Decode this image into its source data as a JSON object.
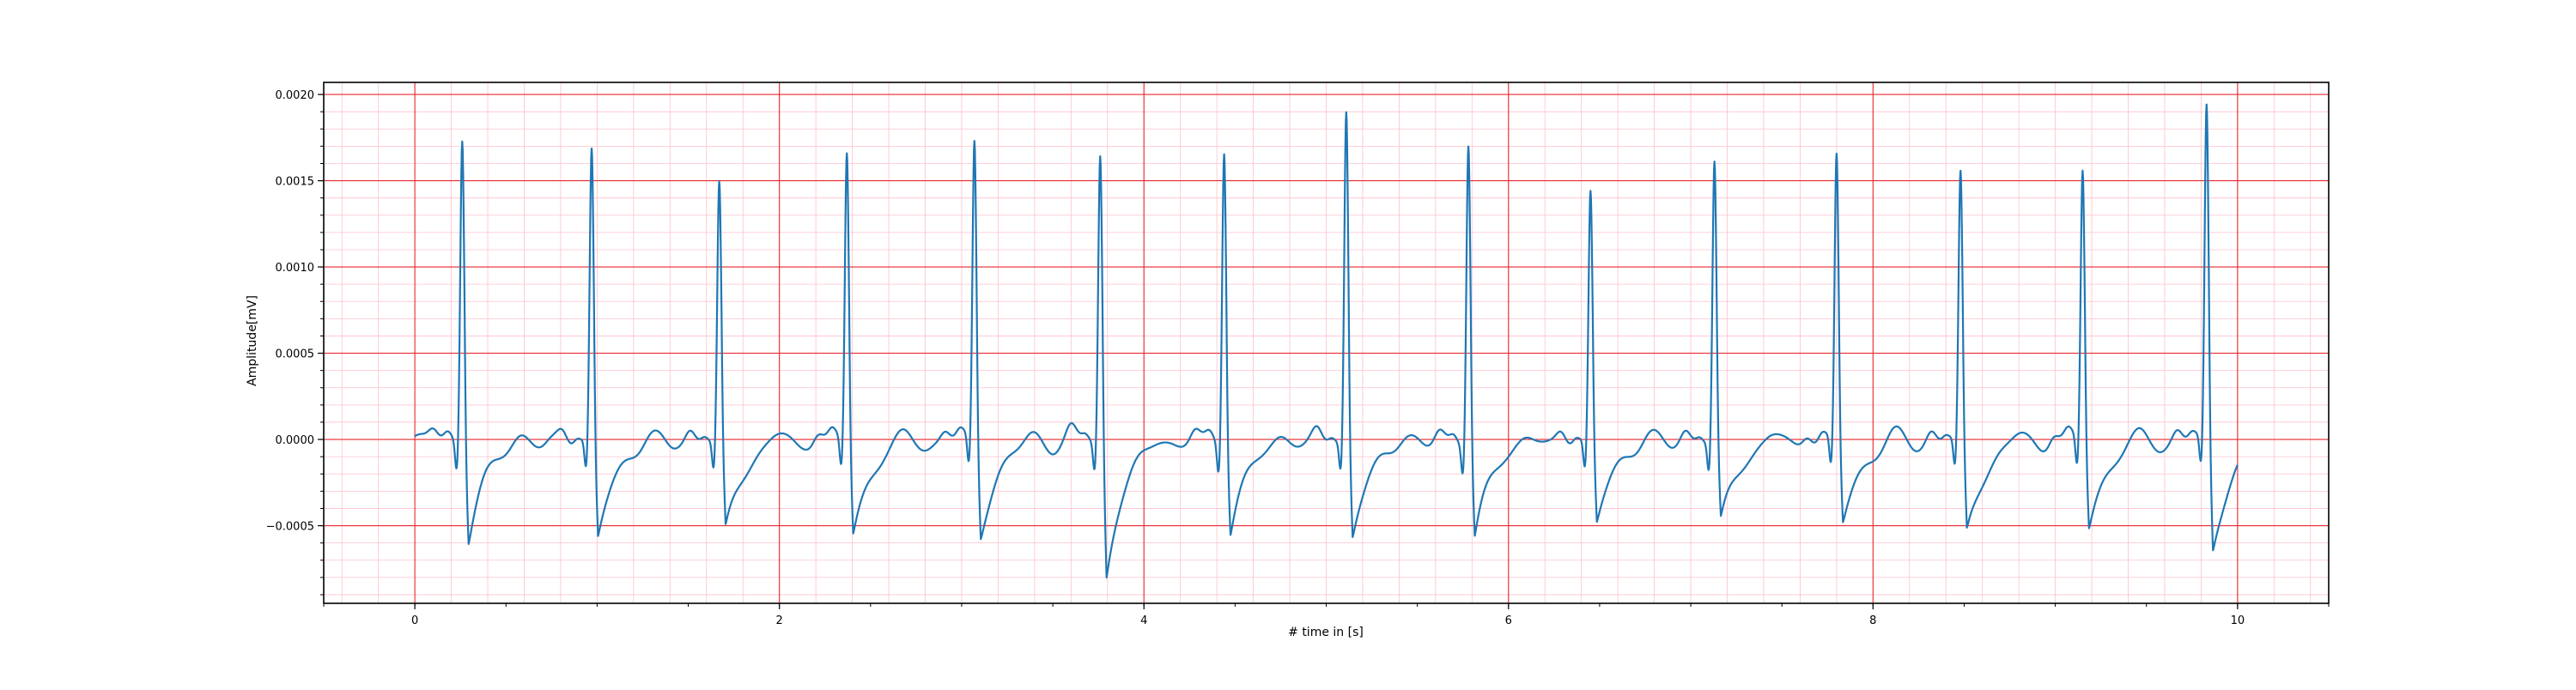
{
  "chart_data": {
    "type": "line",
    "title": "",
    "xlabel": "# time in [s]",
    "ylabel": "Amplitude[mV]",
    "xlim": [
      -0.5,
      10.5
    ],
    "ylim": [
      -0.00095,
      0.00207
    ],
    "x_ticks": [
      0,
      2,
      4,
      6,
      8,
      10
    ],
    "x_tick_labels": [
      "0",
      "2",
      "4",
      "6",
      "8",
      "10"
    ],
    "y_ticks": [
      -0.0005,
      0.0,
      0.0005,
      0.001,
      0.0015,
      0.002
    ],
    "y_tick_labels": [
      "−0.0005",
      "0.0000",
      "0.0005",
      "0.0010",
      "0.0015",
      "0.0020"
    ],
    "grid": {
      "major": true,
      "major_color": "#e8282e",
      "minor": true,
      "minor_color": "#ffc0cb",
      "x_minor_step": 0.2,
      "y_minor_step": 0.0001
    },
    "legend": false,
    "series": [
      {
        "color": "#1f77b4",
        "sample_rate_hz": 100,
        "duration_s": 10.0,
        "baseline_mV": 0.0,
        "beats": [
          {
            "r_time_s": 0.26,
            "r_peak_mV": 0.00176,
            "s_min_mV": -0.00058
          },
          {
            "r_time_s": 0.97,
            "r_peak_mV": 0.00167,
            "s_min_mV": -0.00058
          },
          {
            "r_time_s": 1.67,
            "r_peak_mV": 0.00147,
            "s_min_mV": -0.00054
          },
          {
            "r_time_s": 2.37,
            "r_peak_mV": 0.00166,
            "s_min_mV": -0.00055
          },
          {
            "r_time_s": 3.07,
            "r_peak_mV": 0.00173,
            "s_min_mV": -0.00055
          },
          {
            "r_time_s": 3.76,
            "r_peak_mV": 0.00165,
            "s_min_mV": -0.0008
          },
          {
            "r_time_s": 4.44,
            "r_peak_mV": 0.0017,
            "s_min_mV": -0.00053
          },
          {
            "r_time_s": 5.11,
            "r_peak_mV": 0.0019,
            "s_min_mV": -0.00057
          },
          {
            "r_time_s": 5.78,
            "r_peak_mV": 0.00173,
            "s_min_mV": -0.00057
          },
          {
            "r_time_s": 6.45,
            "r_peak_mV": 0.00143,
            "s_min_mV": -0.00049
          },
          {
            "r_time_s": 7.13,
            "r_peak_mV": 0.0016,
            "s_min_mV": -0.00049
          },
          {
            "r_time_s": 7.8,
            "r_peak_mV": 0.00164,
            "s_min_mV": -0.00049
          },
          {
            "r_time_s": 8.48,
            "r_peak_mV": 0.00152,
            "s_min_mV": -0.00055
          },
          {
            "r_time_s": 9.15,
            "r_peak_mV": 0.00156,
            "s_min_mV": -0.00051
          },
          {
            "r_time_s": 9.83,
            "r_peak_mV": 0.00192,
            "s_min_mV": -0.00064
          }
        ],
        "end_value_mV": -4e-05
      }
    ]
  }
}
